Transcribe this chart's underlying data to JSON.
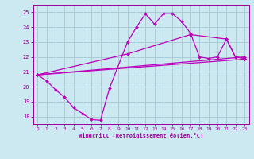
{
  "background_color": "#cce8f0",
  "grid_color": "#a8ccd8",
  "line_color": "#bb00bb",
  "xlabel": "Windchill (Refroidissement éolien,°C)",
  "xlabel_color": "#990099",
  "tick_color": "#990099",
  "ylim": [
    17.5,
    25.5
  ],
  "xlim": [
    -0.5,
    23.5
  ],
  "yticks": [
    18,
    19,
    20,
    21,
    22,
    23,
    24,
    25
  ],
  "xticks": [
    0,
    1,
    2,
    3,
    4,
    5,
    6,
    7,
    8,
    9,
    10,
    11,
    12,
    13,
    14,
    15,
    16,
    17,
    18,
    19,
    20,
    21,
    22,
    23
  ],
  "line1": {
    "x": [
      0,
      1,
      2,
      3,
      4,
      5,
      6,
      7,
      8,
      10,
      11,
      12,
      13,
      14,
      15,
      16,
      17,
      18,
      19,
      20,
      21,
      22,
      23
    ],
    "y": [
      20.8,
      20.4,
      19.8,
      19.3,
      18.6,
      18.2,
      17.8,
      17.75,
      19.9,
      23.0,
      24.0,
      24.9,
      24.2,
      24.9,
      24.9,
      24.4,
      23.6,
      22.0,
      21.9,
      22.0,
      23.2,
      22.0,
      21.9
    ]
  },
  "line2": {
    "x": [
      0,
      10,
      17,
      21,
      22,
      23
    ],
    "y": [
      20.8,
      22.2,
      23.5,
      23.2,
      22.0,
      21.9
    ]
  },
  "line3": {
    "x": [
      0,
      23
    ],
    "y": [
      20.8,
      22.0
    ]
  },
  "line4": {
    "x": [
      0,
      23
    ],
    "y": [
      20.8,
      21.85
    ]
  }
}
